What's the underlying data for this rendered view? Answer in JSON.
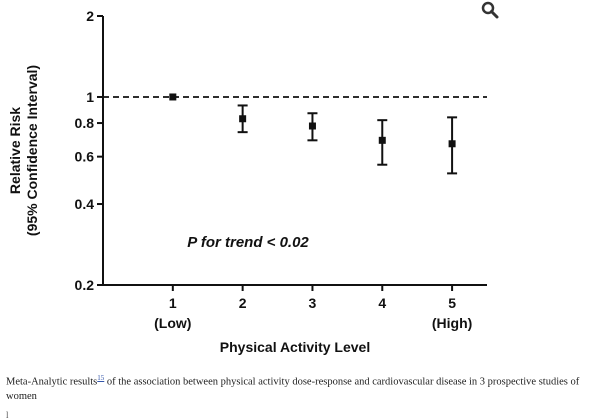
{
  "chart_data": {
    "type": "scatter",
    "subtype": "point-estimates-with-error-bars",
    "xlabel": "Physical Activity Level",
    "ylabel_lines": [
      "Relative Risk",
      "(95% Confidence Interval)"
    ],
    "y_scale": "log",
    "ylim": [
      0.2,
      2
    ],
    "xlim": [
      0,
      5.5
    ],
    "x_ticks": [
      {
        "value": 1,
        "label": "1",
        "sublabel": "(Low)"
      },
      {
        "value": 2,
        "label": "2",
        "sublabel": ""
      },
      {
        "value": 3,
        "label": "3",
        "sublabel": ""
      },
      {
        "value": 4,
        "label": "4",
        "sublabel": ""
      },
      {
        "value": 5,
        "label": "5",
        "sublabel": "(High)"
      }
    ],
    "y_ticks": [
      {
        "value": 2,
        "label": "2"
      },
      {
        "value": 1,
        "label": "1"
      },
      {
        "value": 0.8,
        "label": "0.8"
      },
      {
        "value": 0.6,
        "label": "0.6"
      },
      {
        "value": 0.4,
        "label": "0.4"
      },
      {
        "value": 0.2,
        "label": "0.2"
      }
    ],
    "reference_line": {
      "y": 1,
      "style": "dashed"
    },
    "points": [
      {
        "x": 1,
        "y": 1.0,
        "lower": 1.0,
        "upper": 1.0
      },
      {
        "x": 2,
        "y": 0.83,
        "lower": 0.74,
        "upper": 0.93
      },
      {
        "x": 3,
        "y": 0.78,
        "lower": 0.69,
        "upper": 0.87
      },
      {
        "x": 4,
        "y": 0.69,
        "lower": 0.56,
        "upper": 0.82
      },
      {
        "x": 5,
        "y": 0.67,
        "lower": 0.52,
        "upper": 0.84
      }
    ],
    "annotation": "P for trend < 0.02",
    "grid": false
  },
  "caption": {
    "prefix": "Meta-Analytic results",
    "ref": "15",
    "suffix": " of the association between physical activity dose-response and cardiovascular disease in 3 prospective studies of women"
  },
  "icons": {
    "zoom": "magnifier-icon"
  },
  "footer_fragment": "l"
}
